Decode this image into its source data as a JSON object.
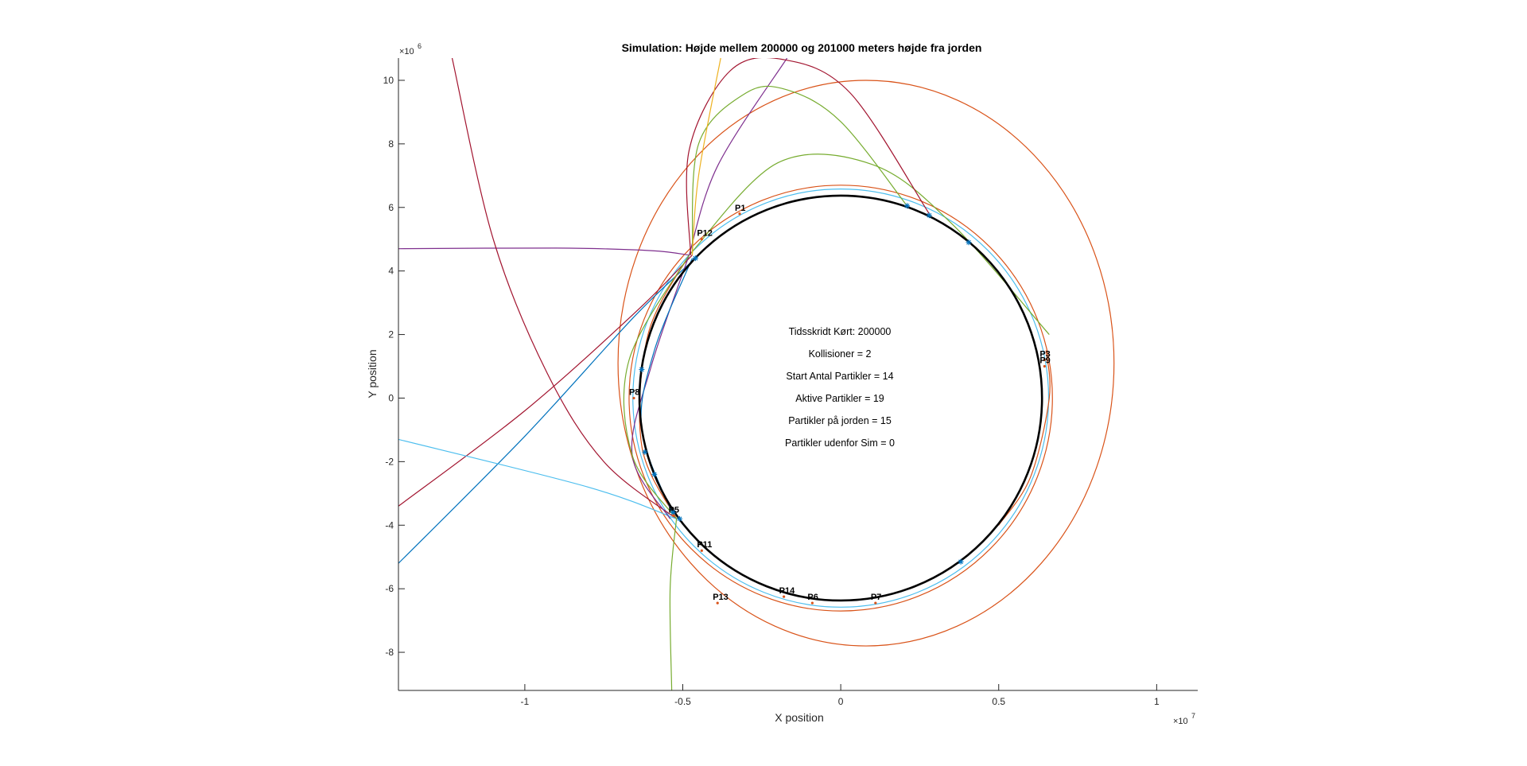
{
  "chart_data": {
    "type": "line",
    "title": "Simulation: Højde mellem 200000 og 201000 meters højde fra jorden",
    "xlabel": "X position",
    "ylabel": "Y position",
    "x_exponent": "×10",
    "x_exponent_power": "7",
    "y_exponent": "×10",
    "y_exponent_power": "6",
    "xlim": [
      -14000000,
      11300000
    ],
    "ylim": [
      -9200000,
      10700000
    ],
    "x_ticks": [
      -10000000,
      -5000000,
      0,
      5000000,
      10000000
    ],
    "x_tick_labels": [
      "-1",
      "-0.5",
      "0",
      "0.5",
      "1"
    ],
    "y_ticks": [
      -8000000,
      -6000000,
      -4000000,
      -2000000,
      0,
      2000000,
      4000000,
      6000000,
      8000000,
      10000000
    ],
    "y_tick_labels": [
      "-8",
      "-6",
      "-4",
      "-2",
      "0",
      "2",
      "4",
      "6",
      "8",
      "10"
    ],
    "grid": false,
    "earth": {
      "cx": 0,
      "cy": 0,
      "r": 6371000,
      "color": "#000000"
    },
    "info_lines": [
      "Tidsskridt Kørt: 200000",
      "Kollisioner = 2",
      "Start Antal Partikler = 14",
      "Aktive Partikler = 19",
      "Partikler på jorden = 15",
      "Partikler udenfor Sim = 0"
    ],
    "orbits": [
      {
        "type": "ellipse",
        "cx": 0,
        "cy": 0,
        "rx": 6580000,
        "ry": 6580000,
        "color": "#4DBEEE"
      },
      {
        "type": "ellipse",
        "cx": 800000,
        "cy": 1100000,
        "rx": 7850000,
        "ry": 8900000,
        "color": "#D95319"
      },
      {
        "type": "ellipse",
        "cx": 0,
        "cy": 0,
        "rx": 6700000,
        "ry": 6700000,
        "color": "#D95319"
      }
    ],
    "series": [
      {
        "color": "#77AC30",
        "points": [
          [
            -4800000,
            4500000
          ],
          [
            -2000000,
            7400000
          ],
          [
            1000000,
            7350000
          ],
          [
            3500000,
            5500000
          ],
          [
            6600000,
            2000000
          ]
        ]
      },
      {
        "color": "#7E2F8E",
        "points": [
          [
            -14000000,
            4700000
          ],
          [
            -9000000,
            4720000
          ],
          [
            -6000000,
            4640000
          ],
          [
            -4800000,
            4500000
          ]
        ]
      },
      {
        "color": "#7E2F8E",
        "points": [
          [
            -4800000,
            4500000
          ],
          [
            -3900000,
            7300000
          ],
          [
            -1700000,
            10700000
          ]
        ]
      },
      {
        "color": "#A2142F",
        "points": [
          [
            -4750000,
            4500000
          ],
          [
            -4800000,
            7800000
          ],
          [
            -3500000,
            10300000
          ],
          [
            -1800000,
            10650000
          ],
          [
            300000,
            9600000
          ],
          [
            2800000,
            5800000
          ]
        ]
      },
      {
        "color": "#77AC30",
        "points": [
          [
            -4700000,
            4500000
          ],
          [
            -4500000,
            8000000
          ],
          [
            -3000000,
            9600000
          ],
          [
            -1700000,
            9700000
          ],
          [
            0,
            8700000
          ],
          [
            2100000,
            6050000
          ]
        ]
      },
      {
        "color": "#EDB120",
        "points": [
          [
            -4700000,
            4500000
          ],
          [
            -4500000,
            7000000
          ],
          [
            -3800000,
            10700000
          ]
        ]
      },
      {
        "color": "#A2142F",
        "points": [
          [
            -12300000,
            10700000
          ],
          [
            -11000000,
            5000000
          ],
          [
            -9300000,
            800000
          ],
          [
            -7500000,
            -2000000
          ],
          [
            -5200000,
            -3800000
          ]
        ]
      },
      {
        "color": "#0072BD",
        "points": [
          [
            -14000000,
            -5200000
          ],
          [
            -10000000,
            -1200000
          ],
          [
            -6500000,
            2600000
          ],
          [
            -4600000,
            4400000
          ]
        ]
      },
      {
        "color": "#A2142F",
        "points": [
          [
            -14000000,
            -3400000
          ],
          [
            -10000000,
            -400000
          ],
          [
            -6500000,
            2700000
          ],
          [
            -4700000,
            4500000
          ]
        ]
      },
      {
        "color": "#4DBEEE",
        "points": [
          [
            -14000000,
            -1300000
          ],
          [
            -8000000,
            -2800000
          ],
          [
            -5200000,
            -3800000
          ]
        ]
      },
      {
        "color": "#77AC30",
        "points": [
          [
            -5200000,
            -3800000
          ],
          [
            -5400000,
            -6000000
          ],
          [
            -5350000,
            -9200000
          ]
        ]
      },
      {
        "color": "#D95319",
        "points": [
          [
            -4800000,
            4500000
          ],
          [
            -6100000,
            2000000
          ],
          [
            -6300000,
            -1500000
          ],
          [
            -5200000,
            -3800000
          ]
        ]
      },
      {
        "color": "#7E2F8E",
        "points": [
          [
            -4800000,
            4500000
          ],
          [
            -6000000,
            1000000
          ],
          [
            -6600000,
            -1800000
          ],
          [
            -5400000,
            -3800000
          ]
        ]
      },
      {
        "color": "#0072BD",
        "points": [
          [
            -4700000,
            4400000
          ],
          [
            -5900000,
            1500000
          ],
          [
            -6300000,
            -1000000
          ],
          [
            -5300000,
            -3700000
          ]
        ]
      },
      {
        "color": "#77AC30",
        "points": [
          [
            -4800000,
            4500000
          ],
          [
            -6700000,
            1200000
          ],
          [
            -6600000,
            -1800000
          ],
          [
            -5200000,
            -3800000
          ]
        ]
      },
      {
        "color": "#D95319",
        "points": [
          [
            5000000,
            -4000000
          ],
          [
            6000000,
            -2500000
          ],
          [
            6600000,
            0
          ],
          [
            6500000,
            1500000
          ]
        ]
      }
    ],
    "markers": [
      {
        "x": -4600000,
        "y": 4400000
      },
      {
        "x": -6300000,
        "y": 900000
      },
      {
        "x": -6200000,
        "y": -1700000
      },
      {
        "x": -5900000,
        "y": -2400000
      },
      {
        "x": -5300000,
        "y": -3600000
      },
      {
        "x": -5100000,
        "y": -3800000
      },
      {
        "x": 2100000,
        "y": 6050000
      },
      {
        "x": 2800000,
        "y": 5750000
      },
      {
        "x": 4050000,
        "y": 4900000
      },
      {
        "x": 3800000,
        "y": -5150000
      }
    ],
    "particles": [
      {
        "name": "P1",
        "x": -3200000,
        "y": 5800000,
        "color": "#D95319"
      },
      {
        "name": "P12",
        "x": -4400000,
        "y": 5000000,
        "color": "#D95319"
      },
      {
        "name": "P3",
        "x": 6450000,
        "y": 1200000,
        "color": "#D95319"
      },
      {
        "name": "P9",
        "x": 6450000,
        "y": 1000000,
        "color": "#D95319"
      },
      {
        "name": "P8",
        "x": -6550000,
        "y": 0,
        "color": "#D95319"
      },
      {
        "name": "P5",
        "x": -5300000,
        "y": -3700000,
        "color": "#D95319"
      },
      {
        "name": "P11",
        "x": -4400000,
        "y": -4800000,
        "color": "#D95319"
      },
      {
        "name": "P13",
        "x": -3900000,
        "y": -6450000,
        "color": "#D95319"
      },
      {
        "name": "P14",
        "x": -1800000,
        "y": -6250000,
        "color": "#D95319"
      },
      {
        "name": "P6",
        "x": -900000,
        "y": -6450000,
        "color": "#D95319"
      },
      {
        "name": "P7",
        "x": 1100000,
        "y": -6450000,
        "color": "#D95319"
      }
    ]
  }
}
